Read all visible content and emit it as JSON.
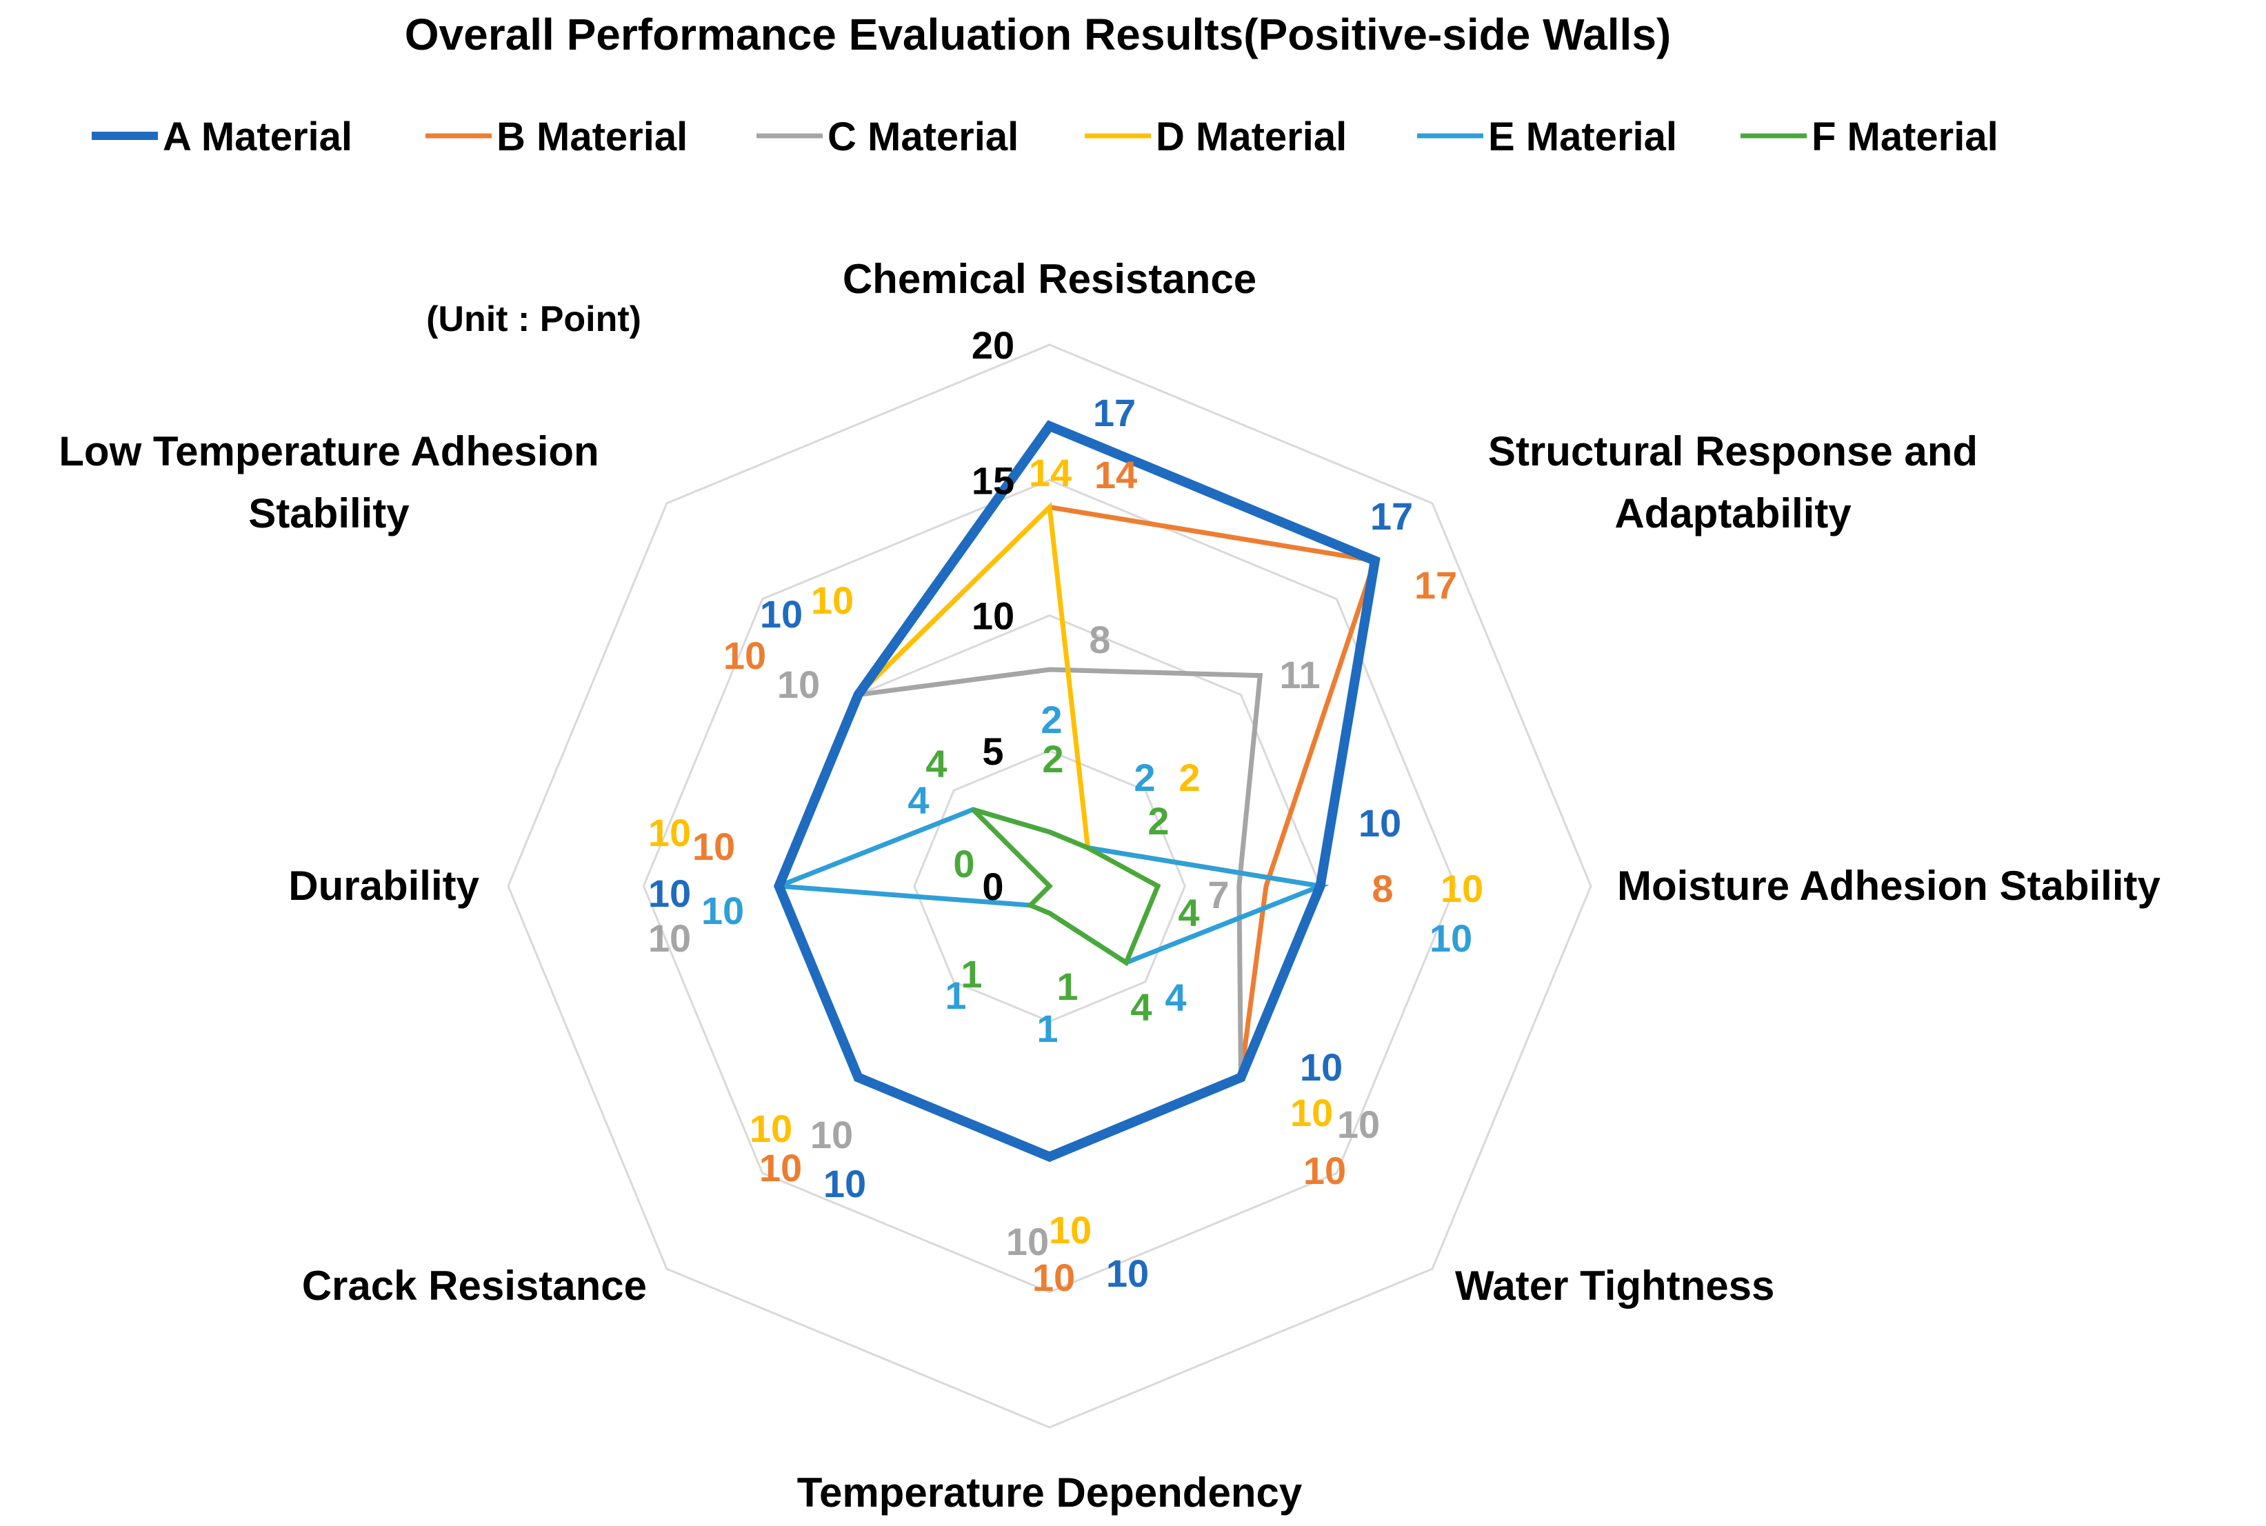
{
  "chart_data": {
    "type": "radar",
    "title": "Overall Performance Evaluation Results(Positive-side Walls)",
    "unit_label": "(Unit : Point)",
    "axes": [
      "Chemical Resistance",
      "Structural Response and Adaptability",
      "Moisture Adhesion Stability",
      "Water Tightness",
      "Temperature Dependency",
      "Crack Resistance",
      "Durability",
      "Low Temperature Adhesion Stability"
    ],
    "rlim": [
      0,
      20
    ],
    "ticks": [
      "0",
      "5",
      "10",
      "15",
      "20"
    ],
    "tick_values": [
      0,
      5,
      10,
      15,
      20
    ],
    "legend_position": "top",
    "series": [
      {
        "name": "A Material",
        "color": "#1f6bbf",
        "values": [
          17,
          17,
          10,
          10,
          10,
          10,
          10,
          10
        ]
      },
      {
        "name": "B Material",
        "color": "#ed7d31",
        "values": [
          14,
          17,
          8,
          10,
          10,
          10,
          10,
          10
        ]
      },
      {
        "name": "C Material",
        "color": "#a5a5a5",
        "values": [
          8,
          11,
          7,
          10,
          10,
          10,
          10,
          10
        ]
      },
      {
        "name": "D Material",
        "color": "#ffc000",
        "values": [
          14,
          2,
          10,
          10,
          10,
          10,
          10,
          10
        ]
      },
      {
        "name": "E Material",
        "color": "#2e9fd8",
        "values": [
          2,
          2,
          10,
          4,
          1,
          1,
          10,
          4
        ]
      },
      {
        "name": "F Material",
        "color": "#4aa83a",
        "values": [
          2,
          2,
          4,
          4,
          1,
          1,
          0,
          4
        ]
      }
    ],
    "value_labels": [
      {
        "series": 0,
        "axis": 0,
        "text": "17"
      },
      {
        "series": 1,
        "axis": 0,
        "text": "14"
      },
      {
        "series": 3,
        "axis": 0,
        "text": "14"
      },
      {
        "series": 2,
        "axis": 0,
        "text": "8"
      },
      {
        "series": 4,
        "axis": 0,
        "text": "2"
      },
      {
        "series": 5,
        "axis": 0,
        "text": "2"
      },
      {
        "series": 0,
        "axis": 1,
        "text": "17"
      },
      {
        "series": 1,
        "axis": 1,
        "text": "17"
      },
      {
        "series": 2,
        "axis": 1,
        "text": "11"
      },
      {
        "series": 4,
        "axis": 1,
        "text": "2"
      },
      {
        "series": 3,
        "axis": 1,
        "text": "2"
      },
      {
        "series": 5,
        "axis": 1,
        "text": "2"
      },
      {
        "series": 0,
        "axis": 2,
        "text": "10"
      },
      {
        "series": 1,
        "axis": 2,
        "text": "8"
      },
      {
        "series": 3,
        "axis": 2,
        "text": "10"
      },
      {
        "series": 4,
        "axis": 2,
        "text": "10"
      },
      {
        "series": 2,
        "axis": 2,
        "text": "7"
      },
      {
        "series": 5,
        "axis": 2,
        "text": "4"
      },
      {
        "series": 0,
        "axis": 3,
        "text": "10"
      },
      {
        "series": 3,
        "axis": 3,
        "text": "10"
      },
      {
        "series": 2,
        "axis": 3,
        "text": "10"
      },
      {
        "series": 1,
        "axis": 3,
        "text": "10"
      },
      {
        "series": 5,
        "axis": 3,
        "text": "4"
      },
      {
        "series": 4,
        "axis": 3,
        "text": "4"
      },
      {
        "series": 2,
        "axis": 4,
        "text": "10"
      },
      {
        "series": 3,
        "axis": 4,
        "text": "10"
      },
      {
        "series": 1,
        "axis": 4,
        "text": "10"
      },
      {
        "series": 0,
        "axis": 4,
        "text": "10"
      },
      {
        "series": 5,
        "axis": 4,
        "text": "1"
      },
      {
        "series": 4,
        "axis": 4,
        "text": "1"
      },
      {
        "series": 3,
        "axis": 5,
        "text": "10"
      },
      {
        "series": 2,
        "axis": 5,
        "text": "10"
      },
      {
        "series": 1,
        "axis": 5,
        "text": "10"
      },
      {
        "series": 0,
        "axis": 5,
        "text": "10"
      },
      {
        "series": 4,
        "axis": 5,
        "text": "1"
      },
      {
        "series": 5,
        "axis": 5,
        "text": "1"
      },
      {
        "series": 3,
        "axis": 6,
        "text": "10"
      },
      {
        "series": 1,
        "axis": 6,
        "text": "10"
      },
      {
        "series": 0,
        "axis": 6,
        "text": "10"
      },
      {
        "series": 4,
        "axis": 6,
        "text": "10"
      },
      {
        "series": 2,
        "axis": 6,
        "text": "10"
      },
      {
        "series": 5,
        "axis": 6,
        "text": "0"
      },
      {
        "series": 0,
        "axis": 7,
        "text": "10"
      },
      {
        "series": 3,
        "axis": 7,
        "text": "10"
      },
      {
        "series": 1,
        "axis": 7,
        "text": "10"
      },
      {
        "series": 2,
        "axis": 7,
        "text": "10"
      },
      {
        "series": 5,
        "axis": 7,
        "text": "4"
      },
      {
        "series": 4,
        "axis": 7,
        "text": "4"
      }
    ]
  }
}
